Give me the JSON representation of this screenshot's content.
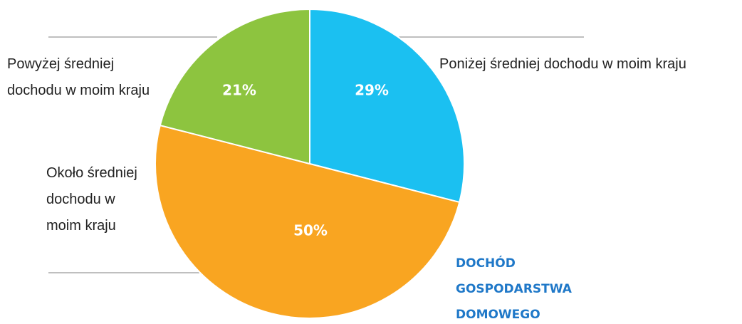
{
  "chart_data": {
    "type": "pie",
    "title": "DOCHÓD GOSPODARSTWA DOMOWEGO",
    "categories": [
      "Poniżej średniej dochodu w moim kraju",
      "Około średniej dochodu w moim kraju",
      "Powyżej średniej dochodu w moim kraju"
    ],
    "values": [
      29,
      50,
      21
    ],
    "value_labels": [
      "29%",
      "50%",
      "21%"
    ],
    "colors": [
      "#1bc0f1",
      "#f9a521",
      "#8dc43f"
    ]
  }
}
